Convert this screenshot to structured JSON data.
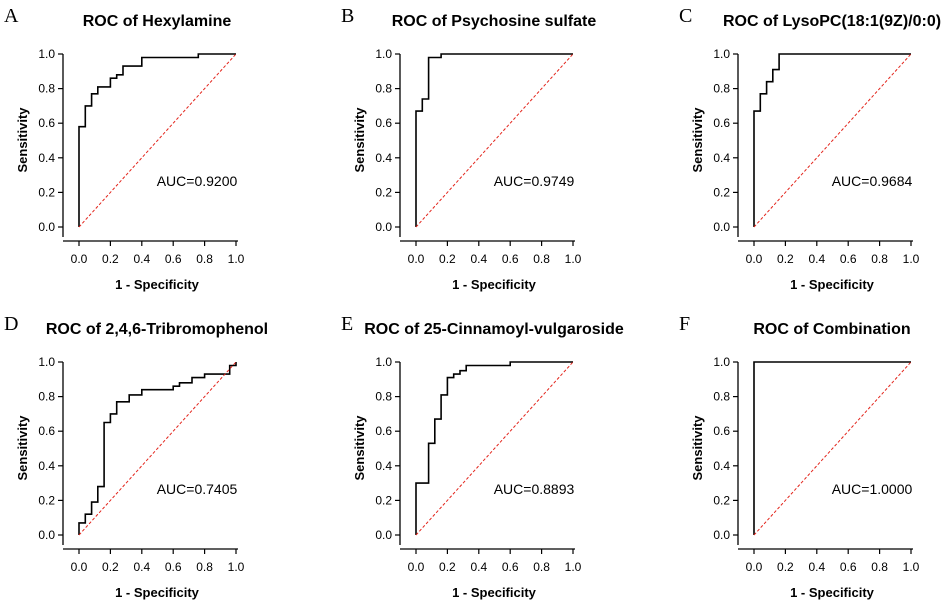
{
  "chart_data": [
    {
      "type": "line",
      "panel_letter": "A",
      "title": "ROC of Hexylamine",
      "xlabel": "1 - Specificity",
      "ylabel": "Sensitivity",
      "annotation": "AUC=0.9200",
      "xlim": [
        0,
        1
      ],
      "ylim": [
        0,
        1
      ],
      "xticks": [
        "0.0",
        "0.2",
        "0.4",
        "0.6",
        "0.8",
        "1.0"
      ],
      "yticks": [
        "0.0",
        "0.2",
        "0.4",
        "0.6",
        "0.8",
        "1.0"
      ],
      "series": [
        {
          "name": "ROC",
          "style": "step",
          "x": [
            0,
            0,
            0.04,
            0.04,
            0.08,
            0.08,
            0.12,
            0.12,
            0.2,
            0.2,
            0.24,
            0.24,
            0.28,
            0.28,
            0.4,
            0.4,
            0.76,
            0.76,
            1
          ],
          "y": [
            0,
            0.58,
            0.58,
            0.7,
            0.7,
            0.77,
            0.77,
            0.81,
            0.81,
            0.86,
            0.86,
            0.88,
            0.88,
            0.93,
            0.93,
            0.98,
            0.98,
            1.0,
            1.0
          ]
        },
        {
          "name": "Reference",
          "style": "dashed",
          "x": [
            0,
            1
          ],
          "y": [
            0,
            1
          ]
        }
      ]
    },
    {
      "type": "line",
      "panel_letter": "B",
      "title": "ROC of Psychosine sulfate",
      "xlabel": "1 - Specificity",
      "ylabel": "Sensitivity",
      "annotation": "AUC=0.9749",
      "xlim": [
        0,
        1
      ],
      "ylim": [
        0,
        1
      ],
      "xticks": [
        "0.0",
        "0.2",
        "0.4",
        "0.6",
        "0.8",
        "1.0"
      ],
      "yticks": [
        "0.0",
        "0.2",
        "0.4",
        "0.6",
        "0.8",
        "1.0"
      ],
      "series": [
        {
          "name": "ROC",
          "style": "step",
          "x": [
            0,
            0,
            0.04,
            0.04,
            0.08,
            0.08,
            0.16,
            0.16,
            1
          ],
          "y": [
            0,
            0.67,
            0.67,
            0.74,
            0.74,
            0.98,
            0.98,
            1.0,
            1.0
          ]
        },
        {
          "name": "Reference",
          "style": "dashed",
          "x": [
            0,
            1
          ],
          "y": [
            0,
            1
          ]
        }
      ]
    },
    {
      "type": "line",
      "panel_letter": "C",
      "title": "ROC of LysoPC(18:1(9Z)/0:0)",
      "xlabel": "1 - Specificity",
      "ylabel": "Sensitivity",
      "annotation": "AUC=0.9684",
      "xlim": [
        0,
        1
      ],
      "ylim": [
        0,
        1
      ],
      "xticks": [
        "0.0",
        "0.2",
        "0.4",
        "0.6",
        "0.8",
        "1.0"
      ],
      "yticks": [
        "0.0",
        "0.2",
        "0.4",
        "0.6",
        "0.8",
        "1.0"
      ],
      "series": [
        {
          "name": "ROC",
          "style": "step",
          "x": [
            0,
            0,
            0.04,
            0.04,
            0.08,
            0.08,
            0.12,
            0.12,
            0.16,
            0.16,
            1
          ],
          "y": [
            0,
            0.67,
            0.67,
            0.77,
            0.77,
            0.84,
            0.84,
            0.91,
            0.91,
            1.0,
            1.0
          ]
        },
        {
          "name": "Reference",
          "style": "dashed",
          "x": [
            0,
            1
          ],
          "y": [
            0,
            1
          ]
        }
      ]
    },
    {
      "type": "line",
      "panel_letter": "D",
      "title": "ROC of 2,4,6-Tribromophenol",
      "xlabel": "1 - Specificity",
      "ylabel": "Sensitivity",
      "annotation": "AUC=0.7405",
      "xlim": [
        0,
        1
      ],
      "ylim": [
        0,
        1
      ],
      "xticks": [
        "0.0",
        "0.2",
        "0.4",
        "0.6",
        "0.8",
        "1.0"
      ],
      "yticks": [
        "0.0",
        "0.2",
        "0.4",
        "0.6",
        "0.8",
        "1.0"
      ],
      "series": [
        {
          "name": "ROC",
          "style": "step",
          "x": [
            0,
            0,
            0.04,
            0.04,
            0.08,
            0.08,
            0.12,
            0.12,
            0.16,
            0.16,
            0.2,
            0.2,
            0.24,
            0.24,
            0.32,
            0.32,
            0.4,
            0.4,
            0.6,
            0.6,
            0.64,
            0.64,
            0.72,
            0.72,
            0.8,
            0.8,
            0.96,
            0.96,
            1,
            1
          ],
          "y": [
            0,
            0.07,
            0.07,
            0.12,
            0.12,
            0.19,
            0.19,
            0.28,
            0.28,
            0.65,
            0.65,
            0.7,
            0.7,
            0.77,
            0.77,
            0.81,
            0.81,
            0.84,
            0.84,
            0.86,
            0.86,
            0.88,
            0.88,
            0.91,
            0.91,
            0.93,
            0.93,
            0.98,
            0.98,
            1.0
          ]
        },
        {
          "name": "Reference",
          "style": "dashed",
          "x": [
            0,
            1
          ],
          "y": [
            0,
            1
          ]
        }
      ]
    },
    {
      "type": "line",
      "panel_letter": "E",
      "title": "ROC of 25-Cinnamoyl-vulgaroside",
      "xlabel": "1 - Specificity",
      "ylabel": "Sensitivity",
      "annotation": "AUC=0.8893",
      "xlim": [
        0,
        1
      ],
      "ylim": [
        0,
        1
      ],
      "xticks": [
        "0.0",
        "0.2",
        "0.4",
        "0.6",
        "0.8",
        "1.0"
      ],
      "yticks": [
        "0.0",
        "0.2",
        "0.4",
        "0.6",
        "0.8",
        "1.0"
      ],
      "series": [
        {
          "name": "ROC",
          "style": "step",
          "x": [
            0,
            0,
            0.08,
            0.08,
            0.12,
            0.12,
            0.16,
            0.16,
            0.2,
            0.2,
            0.24,
            0.24,
            0.28,
            0.28,
            0.32,
            0.32,
            0.6,
            0.6,
            1
          ],
          "y": [
            0,
            0.3,
            0.3,
            0.53,
            0.53,
            0.67,
            0.67,
            0.81,
            0.81,
            0.91,
            0.91,
            0.93,
            0.93,
            0.95,
            0.95,
            0.98,
            0.98,
            1.0,
            1.0
          ]
        },
        {
          "name": "Reference",
          "style": "dashed",
          "x": [
            0,
            1
          ],
          "y": [
            0,
            1
          ]
        }
      ]
    },
    {
      "type": "line",
      "panel_letter": "F",
      "title": "ROC of Combination",
      "xlabel": "1 - Specificity",
      "ylabel": "Sensitivity",
      "annotation": "AUC=1.0000",
      "xlim": [
        0,
        1
      ],
      "ylim": [
        0,
        1
      ],
      "xticks": [
        "0.0",
        "0.2",
        "0.4",
        "0.6",
        "0.8",
        "1.0"
      ],
      "yticks": [
        "0.0",
        "0.2",
        "0.4",
        "0.6",
        "0.8",
        "1.0"
      ],
      "series": [
        {
          "name": "ROC",
          "style": "step",
          "x": [
            0,
            0,
            1
          ],
          "y": [
            0,
            1.0,
            1.0
          ]
        },
        {
          "name": "Reference",
          "style": "dashed",
          "x": [
            0,
            1
          ],
          "y": [
            0,
            1
          ]
        }
      ]
    }
  ]
}
